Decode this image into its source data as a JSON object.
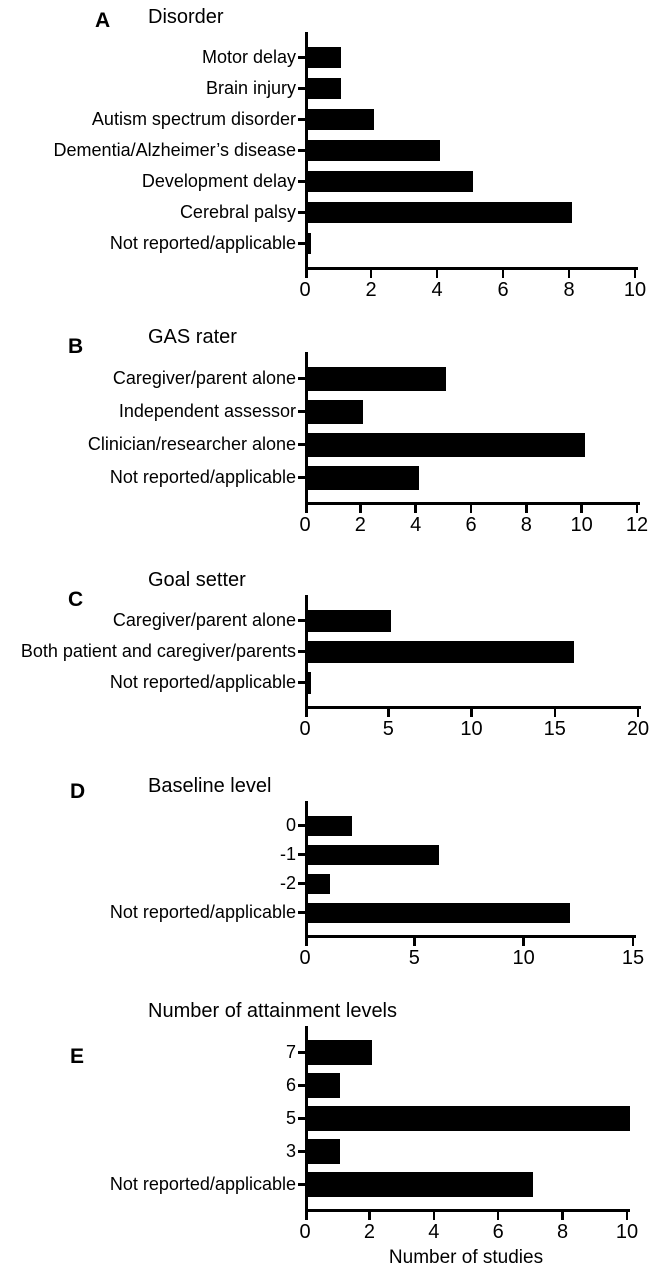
{
  "figure": {
    "xlabel": "Number of studies",
    "bar_color": "#000000",
    "background": "#ffffff"
  },
  "chart_data": [
    {
      "panel": "A",
      "type": "bar",
      "orientation": "horizontal",
      "title": "Disorder",
      "categories": [
        "Motor delay",
        "Brain injury",
        "Autism spectrum disorder",
        "Dementia/Alzheimer’s disease",
        "Development delay",
        "Cerebral palsy",
        "Not reported/applicable"
      ],
      "values": [
        1,
        1,
        2,
        4,
        5,
        8,
        0
      ],
      "xlim": [
        0,
        10
      ],
      "xticks": [
        0,
        2,
        4,
        6,
        8,
        10
      ],
      "grid": false,
      "bar_color": "#000000"
    },
    {
      "panel": "B",
      "type": "bar",
      "orientation": "horizontal",
      "title": "GAS rater",
      "categories": [
        "Caregiver/parent alone",
        "Independent assessor",
        "Clinician/researcher alone",
        "Not reported/applicable"
      ],
      "values": [
        5,
        2,
        10,
        4
      ],
      "xlim": [
        0,
        12
      ],
      "xticks": [
        0,
        2,
        4,
        6,
        8,
        10,
        12
      ],
      "grid": false,
      "bar_color": "#000000"
    },
    {
      "panel": "C",
      "type": "bar",
      "orientation": "horizontal",
      "title": "Goal setter",
      "categories": [
        "Caregiver/parent alone",
        "Both patient and caregiver/parents",
        "Not reported/applicable"
      ],
      "values": [
        5,
        16,
        0
      ],
      "xlim": [
        0,
        20
      ],
      "xticks": [
        0,
        5,
        10,
        15,
        20
      ],
      "grid": false,
      "bar_color": "#000000"
    },
    {
      "panel": "D",
      "type": "bar",
      "orientation": "horizontal",
      "title": "Baseline level",
      "categories": [
        "0",
        "-1",
        "-2",
        "Not reported/applicable"
      ],
      "values": [
        2,
        6,
        1,
        12
      ],
      "xlim": [
        0,
        15
      ],
      "xticks": [
        0,
        5,
        10,
        15
      ],
      "grid": false,
      "bar_color": "#000000"
    },
    {
      "panel": "E",
      "type": "bar",
      "orientation": "horizontal",
      "title": "Number of attainment levels",
      "categories": [
        "7",
        "6",
        "5",
        "3",
        "Not reported/applicable"
      ],
      "values": [
        2,
        1,
        10,
        1,
        7
      ],
      "xlim": [
        0,
        10
      ],
      "xticks": [
        0,
        2,
        4,
        6,
        8,
        10
      ],
      "xlabel": "Number of studies",
      "grid": false,
      "bar_color": "#000000"
    }
  ]
}
